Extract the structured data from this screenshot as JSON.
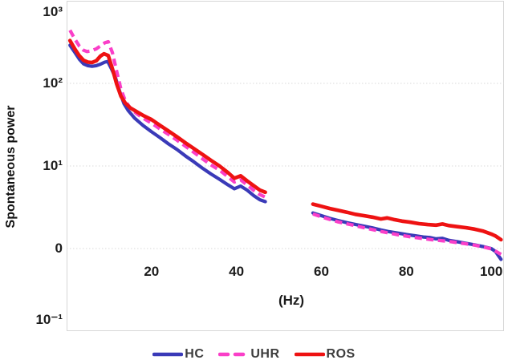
{
  "figure": {
    "background": "#ffffff"
  },
  "chart_data": {
    "type": "line",
    "title": "",
    "xlabel": "(Hz)",
    "ylabel": "Spontaneous power",
    "y_scale": "log",
    "ylim_log": [
      -1,
      3
    ],
    "xlim": [
      0,
      103
    ],
    "grid": "horizontal-dotted",
    "grid_color": "#dadada",
    "border_color": "#d6d6d6",
    "legend_position": "bottom",
    "gap_hz": [
      47,
      57.5
    ],
    "x_ticks": [
      20,
      40,
      60,
      80,
      100
    ],
    "y_ticks": [
      {
        "label": "10³",
        "value": 1000
      },
      {
        "label": "10²",
        "value": 100
      },
      {
        "label": "10¹",
        "value": 10
      },
      {
        "label": "0",
        "value": 1
      },
      {
        "label": "10⁻¹",
        "value": 0.1
      }
    ],
    "series": [
      {
        "name": "HC",
        "color": "#3a3ab8",
        "style": "solid",
        "width": 4.2,
        "segments": [
          [
            [
              0.8,
              290
            ],
            [
              2,
              235
            ],
            [
              3,
              196
            ],
            [
              4,
              172
            ],
            [
              5,
              164
            ],
            [
              6,
              161
            ],
            [
              7,
              164
            ],
            [
              8,
              171
            ],
            [
              9,
              181
            ],
            [
              9.7,
              184
            ],
            [
              10.5,
              152
            ],
            [
              11.5,
              118
            ],
            [
              12.5,
              80
            ],
            [
              13.5,
              57
            ],
            [
              14.5,
              47
            ],
            [
              16,
              38
            ],
            [
              18,
              31
            ],
            [
              20,
              26
            ],
            [
              22,
              22
            ],
            [
              24,
              18.5
            ],
            [
              26,
              15.8
            ],
            [
              28,
              13.2
            ],
            [
              30,
              11.2
            ],
            [
              32,
              9.4
            ],
            [
              34,
              8.0
            ],
            [
              36,
              6.9
            ],
            [
              38,
              5.9
            ],
            [
              39.5,
              5.3
            ],
            [
              41,
              5.7
            ],
            [
              42.5,
              5.1
            ],
            [
              44,
              4.4
            ],
            [
              45.5,
              3.9
            ],
            [
              46.8,
              3.7
            ]
          ],
          [
            [
              58,
              2.7
            ],
            [
              60,
              2.5
            ],
            [
              62,
              2.32
            ],
            [
              64,
              2.18
            ],
            [
              66,
              2.06
            ],
            [
              68,
              1.96
            ],
            [
              70,
              1.87
            ],
            [
              72,
              1.78
            ],
            [
              74,
              1.68
            ],
            [
              76,
              1.6
            ],
            [
              78,
              1.54
            ],
            [
              80,
              1.48
            ],
            [
              82,
              1.43
            ],
            [
              84,
              1.38
            ],
            [
              85.5,
              1.36
            ],
            [
              87,
              1.31
            ],
            [
              88.5,
              1.33
            ],
            [
              90,
              1.26
            ],
            [
              92,
              1.21
            ],
            [
              94,
              1.16
            ],
            [
              96,
              1.11
            ],
            [
              98,
              1.06
            ],
            [
              100,
              1.0
            ],
            [
              101,
              0.92
            ],
            [
              102.3,
              0.74
            ]
          ]
        ]
      },
      {
        "name": "UHR",
        "color": "#fa3fc8",
        "style": "dashed",
        "width": 4.2,
        "segments": [
          [
            [
              0.8,
              440
            ],
            [
              2,
              340
            ],
            [
              3,
              283
            ],
            [
              4,
              252
            ],
            [
              4.8,
              243
            ],
            [
              5.7,
              247
            ],
            [
              7,
              262
            ],
            [
              8,
              285
            ],
            [
              9,
              310
            ],
            [
              9.8,
              320
            ],
            [
              10.8,
              235
            ],
            [
              11.8,
              140
            ],
            [
              12.8,
              85
            ],
            [
              13.8,
              62
            ],
            [
              15,
              50
            ],
            [
              16.5,
              43
            ],
            [
              18,
              38
            ],
            [
              20,
              33
            ],
            [
              22,
              28
            ],
            [
              24,
              24
            ],
            [
              26,
              20.5
            ],
            [
              28,
              17.3
            ],
            [
              30,
              14.6
            ],
            [
              32,
              12.2
            ],
            [
              34,
              10.3
            ],
            [
              36,
              8.9
            ],
            [
              38,
              7.4
            ],
            [
              39.5,
              6.4
            ],
            [
              41,
              6.8
            ],
            [
              42.5,
              5.9
            ],
            [
              44,
              5.1
            ],
            [
              45.5,
              4.5
            ],
            [
              46.8,
              4.2
            ]
          ],
          [
            [
              58,
              2.62
            ],
            [
              60,
              2.42
            ],
            [
              62,
              2.25
            ],
            [
              64,
              2.1
            ],
            [
              66,
              1.99
            ],
            [
              68,
              1.89
            ],
            [
              70,
              1.79
            ],
            [
              72,
              1.7
            ],
            [
              74,
              1.61
            ],
            [
              76,
              1.54
            ],
            [
              78,
              1.47
            ],
            [
              80,
              1.41
            ],
            [
              82,
              1.36
            ],
            [
              84,
              1.32
            ],
            [
              86,
              1.28
            ],
            [
              88,
              1.25
            ],
            [
              90,
              1.22
            ],
            [
              92,
              1.18
            ],
            [
              94,
              1.14
            ],
            [
              96,
              1.1
            ],
            [
              98,
              1.05
            ],
            [
              100,
              0.99
            ],
            [
              101,
              0.93
            ],
            [
              102.3,
              0.85
            ]
          ]
        ]
      },
      {
        "name": "ROS",
        "color": "#ee1212",
        "style": "solid",
        "width": 4.6,
        "segments": [
          [
            [
              0.8,
              330
            ],
            [
              2,
              258
            ],
            [
              3,
              216
            ],
            [
              4,
              190
            ],
            [
              5,
              181
            ],
            [
              6,
              179
            ],
            [
              7,
              188
            ],
            [
              8,
              215
            ],
            [
              8.8,
              228
            ],
            [
              9.8,
              217
            ],
            [
              10.8,
              150
            ],
            [
              11.8,
              98
            ],
            [
              12.8,
              70
            ],
            [
              13.8,
              58
            ],
            [
              15,
              50.5
            ],
            [
              16.5,
              45.5
            ],
            [
              18,
              41
            ],
            [
              20,
              36.5
            ],
            [
              22,
              31
            ],
            [
              24,
              26.5
            ],
            [
              26,
              22.5
            ],
            [
              28,
              19
            ],
            [
              30,
              16.2
            ],
            [
              32,
              13.8
            ],
            [
              34,
              11.7
            ],
            [
              36,
              10.0
            ],
            [
              38,
              8.3
            ],
            [
              39.5,
              7.1
            ],
            [
              41,
              7.6
            ],
            [
              42.5,
              6.6
            ],
            [
              44,
              5.8
            ],
            [
              45.5,
              5.1
            ],
            [
              46.8,
              4.8
            ]
          ],
          [
            [
              58,
              3.45
            ],
            [
              60,
              3.25
            ],
            [
              62,
              3.05
            ],
            [
              64,
              2.9
            ],
            [
              66,
              2.75
            ],
            [
              68,
              2.6
            ],
            [
              70,
              2.5
            ],
            [
              72,
              2.4
            ],
            [
              74,
              2.28
            ],
            [
              75.5,
              2.35
            ],
            [
              77,
              2.25
            ],
            [
              79,
              2.15
            ],
            [
              81,
              2.08
            ],
            [
              83,
              2.0
            ],
            [
              85,
              1.95
            ],
            [
              87,
              1.92
            ],
            [
              88.5,
              1.98
            ],
            [
              90,
              1.9
            ],
            [
              92,
              1.84
            ],
            [
              94,
              1.79
            ],
            [
              96,
              1.72
            ],
            [
              98,
              1.63
            ],
            [
              100,
              1.5
            ],
            [
              101,
              1.42
            ],
            [
              102.3,
              1.28
            ]
          ]
        ]
      }
    ]
  }
}
